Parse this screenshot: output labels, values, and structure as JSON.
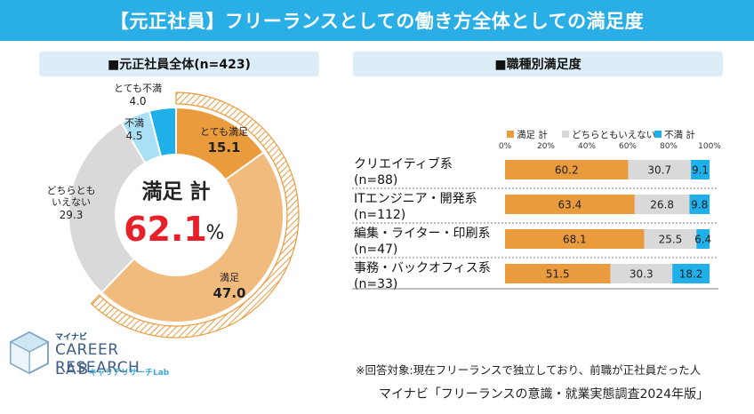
{
  "header": {
    "title": "【元正社員】フリーランスとしての働き方全体としての満足度"
  },
  "left_panel": {
    "heading": "■元正社員全体(n=423)",
    "center_label": "満足 計",
    "center_value": "62.1",
    "center_unit": "%"
  },
  "right_panel": {
    "heading": "■職種別満足度"
  },
  "chart_data": [
    {
      "type": "pie",
      "title": "■元正社員全体(n=423)",
      "slices": [
        {
          "label": "とても満足",
          "value": 15.1,
          "display": "15.1",
          "color": "#ea9b3d"
        },
        {
          "label": "満足",
          "value": 47.0,
          "display": "47.0",
          "color": "#f1bb7d"
        },
        {
          "label": "どちらともいえない",
          "display_label": "どちらとも\nいえない",
          "value": 29.3,
          "display": "29.3",
          "color": "#d9d9d9"
        },
        {
          "label": "不満",
          "value": 4.5,
          "display": "4.5",
          "color": "#a9e0f5"
        },
        {
          "label": "とても不満",
          "value": 4.0,
          "display": "4.0",
          "color": "#1fb0ea"
        }
      ],
      "total_label": "満足 計",
      "total_value": 62.1
    },
    {
      "type": "bar",
      "stacked": true,
      "orientation": "horizontal",
      "title": "■職種別満足度",
      "categories": [
        {
          "name": "クリエイティブ系",
          "n": "(n=88)"
        },
        {
          "name": "ITエンジニア・開発系",
          "n": "(n=112)"
        },
        {
          "name": "編集・ライター・印刷系",
          "n": "(n=47)"
        },
        {
          "name": "事務・バックオフィス系",
          "n": "(n=33)"
        }
      ],
      "series": [
        {
          "name": "満足 計",
          "color": "#ea9b3d",
          "text_color": "#222",
          "values": [
            60.2,
            63.4,
            68.1,
            51.5
          ]
        },
        {
          "name": "どちらともいえない",
          "color": "#d9d9d9",
          "text_color": "#222",
          "values": [
            30.7,
            26.8,
            25.5,
            30.3
          ]
        },
        {
          "name": "不満 計",
          "color": "#1fb0ea",
          "text_color": "#222",
          "values": [
            9.1,
            9.8,
            6.4,
            18.2
          ]
        }
      ],
      "xlim": [
        0,
        100
      ],
      "ticks": [
        "0%",
        "20%",
        "40%",
        "60%",
        "80%",
        "100%"
      ]
    }
  ],
  "footer": {
    "logo_top": "マイナビ",
    "logo_main": "CAREER RESEARCH",
    "logo_lab": "LAB",
    "logo_sub": "キャリアリサーチLab",
    "note": "※回答対象:現在フリーランスで独立しており、前職が正社員だった人",
    "source": "マイナビ「フリーランスの意識・就業実態調査2024年版」"
  }
}
